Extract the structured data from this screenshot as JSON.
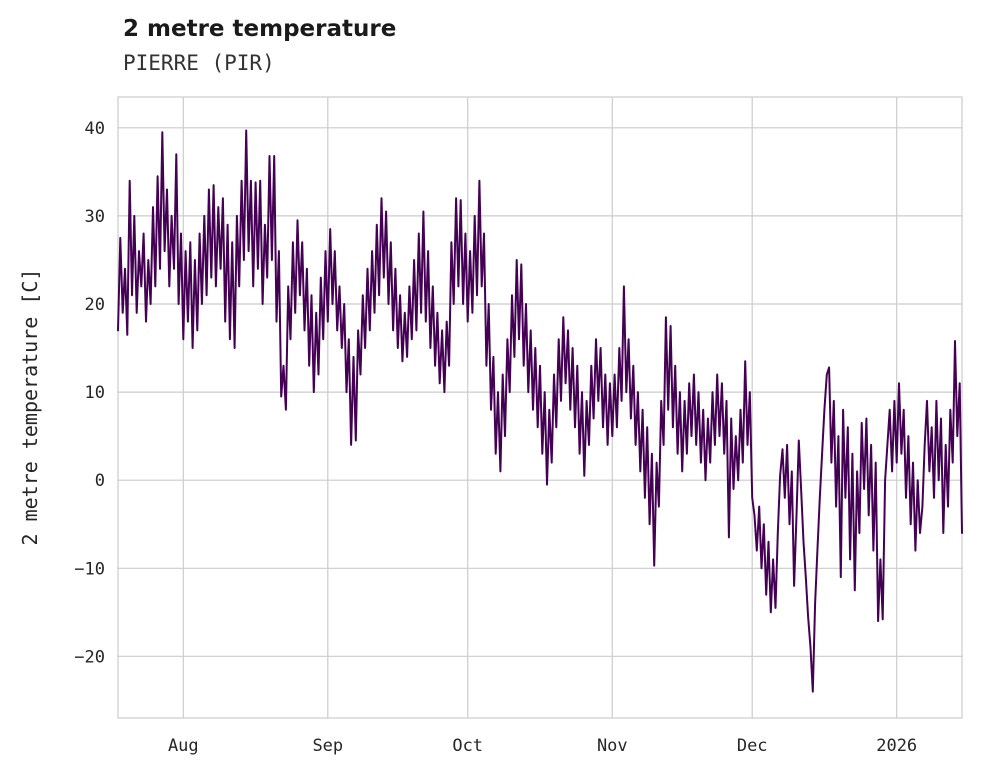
{
  "chart_data": {
    "type": "line",
    "title": "2 metre temperature",
    "subtitle": "PIERRE (PIR)",
    "ylabel": "2 metre temperature [C]",
    "line_color": "#440154",
    "grid_color": "#cccccc",
    "ylim": [
      -27,
      43.5
    ],
    "xlim_days": [
      0,
      181
    ],
    "y_ticks": [
      -20,
      -10,
      0,
      10,
      20,
      30,
      40
    ],
    "x_ticks": [
      {
        "pos": 14,
        "label": "Aug"
      },
      {
        "pos": 45,
        "label": "Sep"
      },
      {
        "pos": 75,
        "label": "Oct"
      },
      {
        "pos": 106,
        "label": "Nov"
      },
      {
        "pos": 136,
        "label": "Dec"
      },
      {
        "pos": 167,
        "label": "2026"
      }
    ],
    "series": [
      {
        "name": "2 metre temperature",
        "x_start": 0,
        "x_step": 0.5,
        "values": [
          17,
          27.5,
          19,
          24,
          16.5,
          34,
          21,
          30,
          19,
          26,
          22,
          28,
          18,
          25,
          20,
          31,
          22,
          34.5,
          24,
          39.5,
          26,
          33,
          22,
          30,
          24,
          37,
          20,
          28,
          16,
          26,
          18,
          27,
          15,
          25,
          17,
          28,
          20,
          30,
          21,
          33,
          23,
          33.5,
          22,
          31,
          24,
          32,
          18,
          29,
          16,
          27,
          15,
          30,
          22,
          34,
          25,
          39.7,
          26,
          34,
          22,
          33.8,
          24,
          34,
          20,
          29,
          23,
          36.8,
          25,
          36.8,
          18,
          26,
          9.5,
          13,
          8,
          22,
          16,
          27,
          19,
          29.5,
          21,
          27,
          17,
          24,
          13,
          21,
          10,
          19,
          12,
          23,
          16,
          26,
          18,
          28.5,
          20,
          26,
          17,
          22,
          15,
          20,
          10,
          16,
          4,
          14,
          4.5,
          17,
          12,
          21,
          15,
          24,
          17,
          26,
          19,
          29,
          21,
          32,
          23,
          30.5,
          20,
          27,
          17,
          24,
          15,
          21,
          13.5,
          19,
          14,
          22,
          16,
          25,
          17,
          28,
          19,
          30.5,
          18,
          26,
          15,
          22,
          13,
          19,
          11,
          17,
          10,
          18,
          13,
          27,
          20,
          32,
          22,
          31.8,
          20,
          28,
          18,
          26,
          19,
          30,
          21,
          34,
          22,
          28,
          13,
          20,
          8,
          14,
          3,
          10,
          1,
          12,
          5,
          16,
          10,
          21,
          14,
          25,
          16,
          24.5,
          13,
          20,
          10,
          17,
          8,
          15,
          6,
          13,
          3,
          10,
          -0.5,
          8,
          2,
          12,
          6,
          16,
          9,
          18.5,
          11,
          17,
          8,
          15,
          6,
          13,
          3,
          10,
          0.5,
          9,
          4,
          13,
          7,
          16,
          9,
          15,
          6,
          12,
          4,
          11,
          5,
          12,
          6,
          15,
          9,
          22,
          10,
          16,
          7,
          13,
          4,
          10,
          1,
          8,
          -2,
          6,
          -5,
          3,
          -9.7,
          2,
          -3,
          9,
          4,
          18.5,
          8,
          17.5,
          6,
          13,
          3,
          10,
          1,
          9,
          3,
          11,
          5,
          12,
          4,
          10,
          2,
          8,
          0,
          7,
          2,
          10,
          4,
          12,
          5,
          11,
          3,
          9,
          -6.5,
          7,
          -1,
          5,
          0,
          8,
          2,
          13.5,
          4,
          10,
          -2,
          -4,
          -8,
          -3,
          -10,
          -5,
          -13,
          -7,
          -15,
          -9,
          -14.5,
          -6,
          0.5,
          3.5,
          -2,
          4,
          -5,
          1,
          -12,
          -4,
          4.5,
          -1,
          -7,
          -11,
          -15.5,
          -19,
          -24,
          -14,
          -8,
          -2,
          3,
          8,
          12,
          12.8,
          2,
          9,
          -3,
          5,
          -11,
          8,
          -2,
          6,
          -9,
          3,
          -12.5,
          1,
          -6,
          6.5,
          -1,
          7,
          -4,
          4,
          -8,
          2,
          -16,
          -9,
          -15.8,
          0,
          4,
          8,
          1,
          9,
          2,
          11,
          3,
          8,
          -2,
          5,
          -5,
          2,
          -8,
          0,
          -6,
          -3,
          4,
          9,
          1,
          6,
          -2,
          9,
          0,
          7,
          -6,
          4,
          -3,
          8,
          2,
          15.8,
          5,
          11,
          -6
        ]
      }
    ]
  }
}
